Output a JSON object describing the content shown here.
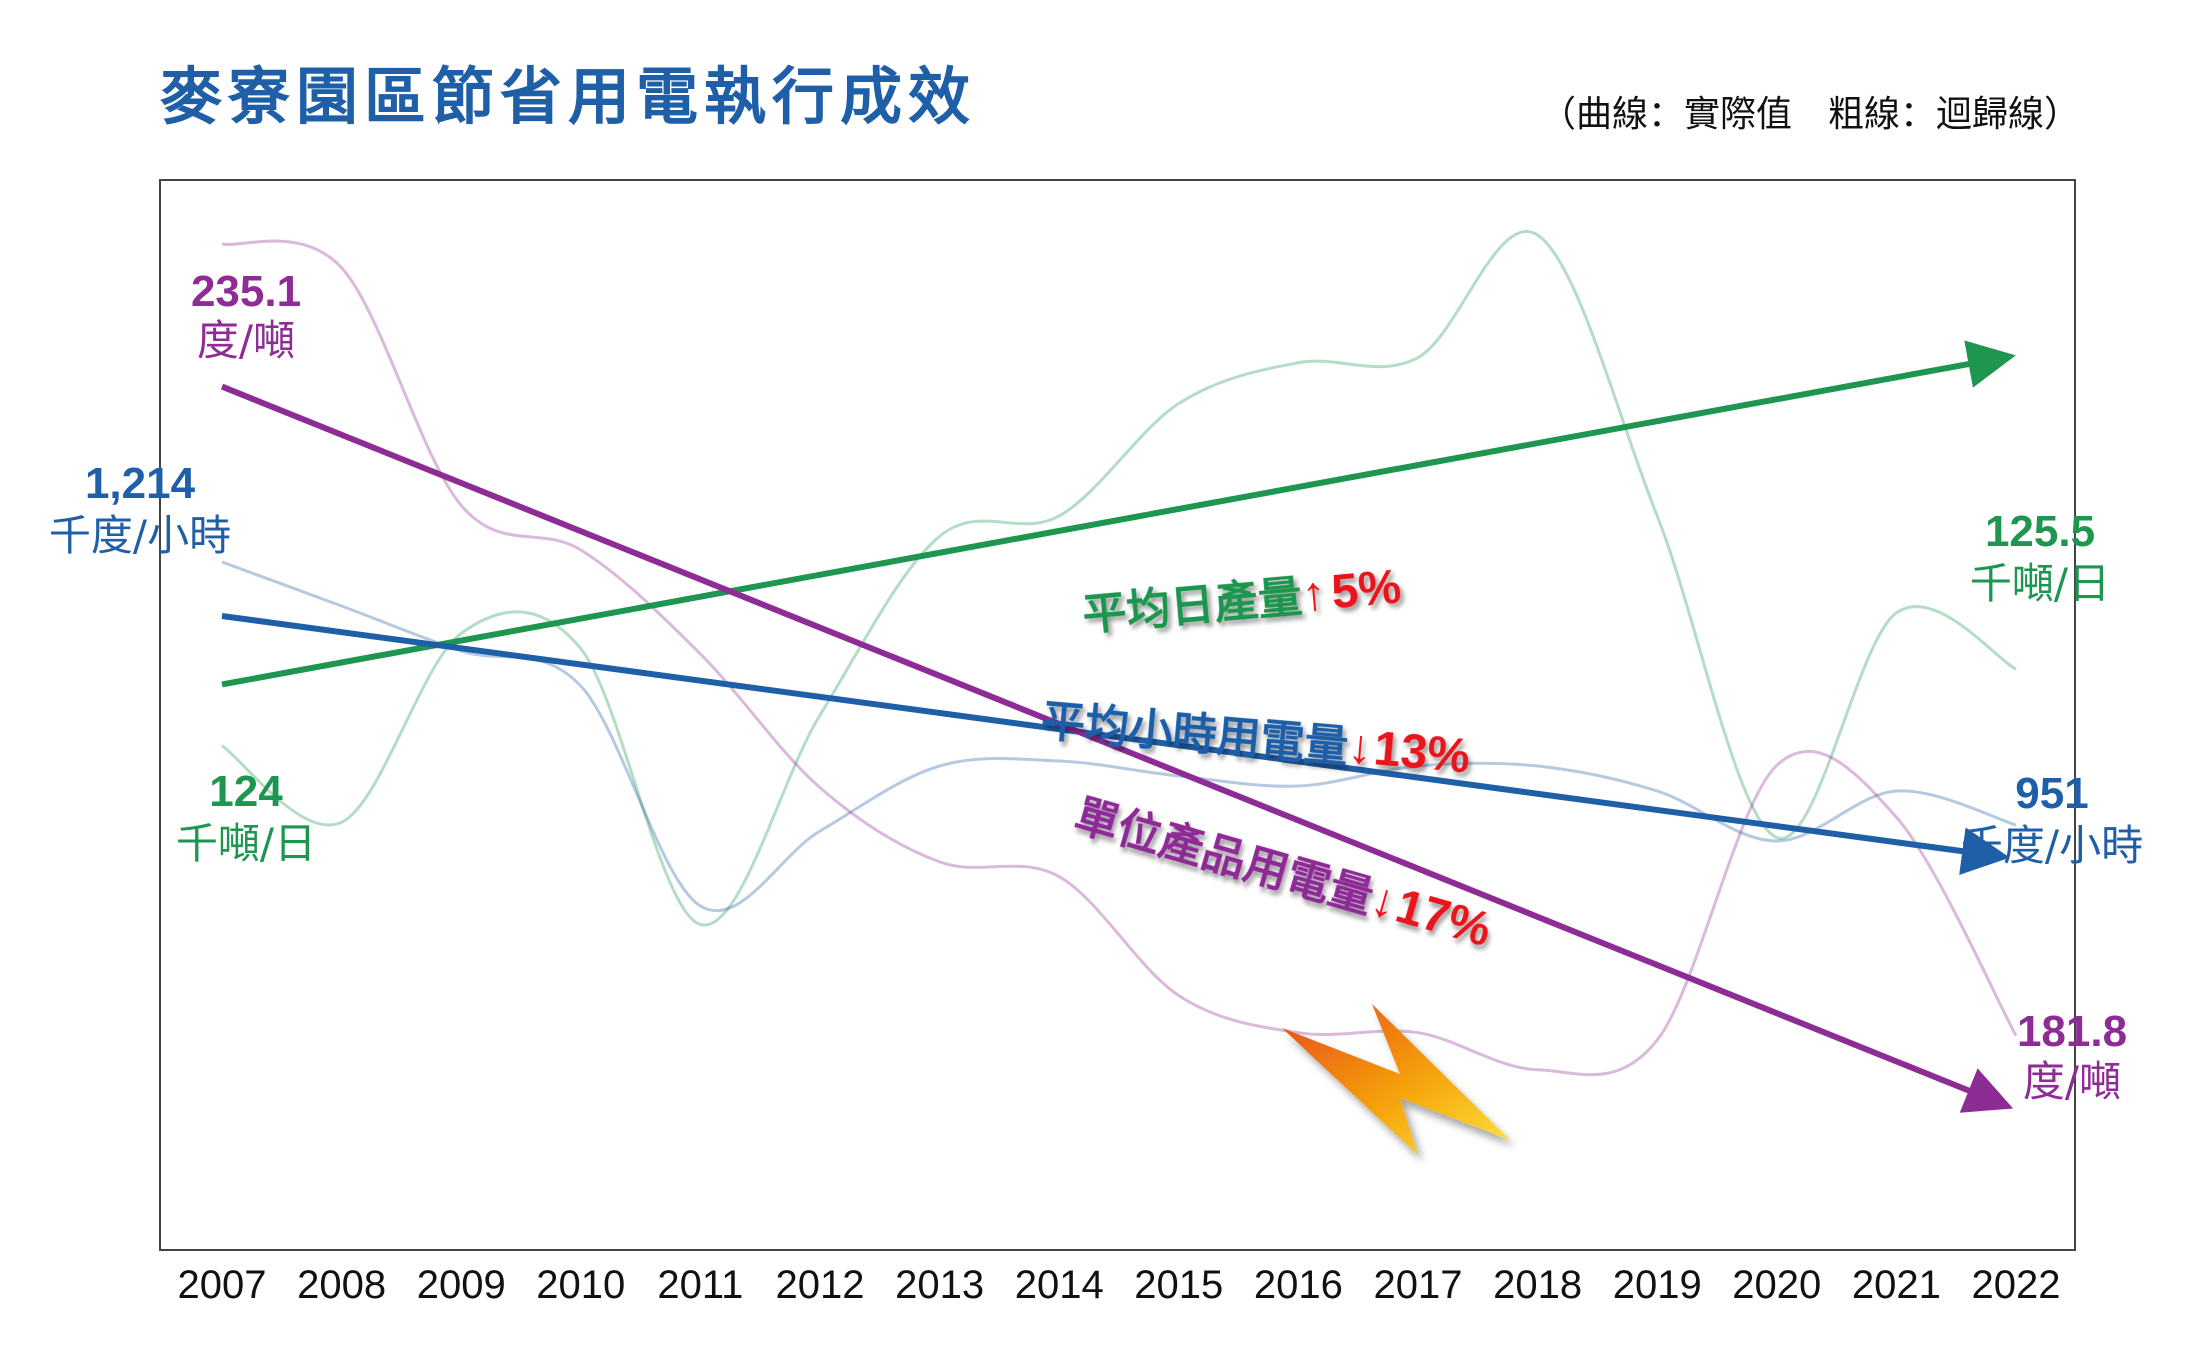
{
  "chart_data": {
    "type": "line",
    "title": "麥寮園區節省用電執行成效",
    "note": "（曲線：實際值　粗線：迴歸線）",
    "x": [
      "2007",
      "2008",
      "2009",
      "2010",
      "2011",
      "2012",
      "2013",
      "2014",
      "2015",
      "2016",
      "2017",
      "2018",
      "2019",
      "2020",
      "2021",
      "2022"
    ],
    "colors": {
      "green": "#1e9650",
      "blue": "#1f5fa8",
      "purple": "#8e2c96",
      "red": "#e8141c"
    },
    "series": [
      {
        "key": "daily_output",
        "color": "#1e9650",
        "values": [
          124,
          122.5,
          126.2,
          125.9,
          120.5,
          124.6,
          128.1,
          128.5,
          130.7,
          131.5,
          131.6,
          134.0,
          128.5,
          122.2,
          126.6,
          125.5
        ],
        "trend": [
          125.2,
          131.6
        ],
        "start_value": "124",
        "start_unit": "千噸/日",
        "end_value": "125.5",
        "end_unit": "千噸/日",
        "annotation": "平均日產量",
        "arrow": "↑",
        "change": "5%"
      },
      {
        "key": "hourly_power",
        "color": "#1f5fa8",
        "values": [
          1214,
          1170,
          1125,
          1090,
          870,
          945,
          1010,
          1015,
          1000,
          990,
          1010,
          1010,
          985,
          935,
          985,
          951
        ],
        "trend": [
          1160,
          920
        ],
        "start_value": "1,214",
        "start_unit": "千度/小時",
        "end_value": "951",
        "end_unit": "千度/小時",
        "annotation": "平均小時用電量",
        "arrow": "↓",
        "change": "13%"
      },
      {
        "key": "unit_power",
        "color": "#8e2c96",
        "values": [
          235.1,
          233.5,
          217.5,
          214.5,
          207.5,
          198.5,
          193.5,
          192.5,
          184.5,
          182.0,
          182.0,
          179.5,
          181.5,
          200.0,
          196.5,
          181.8
        ],
        "trend": [
          225.5,
          177.2
        ],
        "start_value": "235.1",
        "start_unit": "度/噸",
        "end_value": "181.8",
        "end_unit": "度/噸",
        "annotation": "單位產品用電量",
        "arrow": "↓",
        "change": "17%"
      }
    ]
  }
}
